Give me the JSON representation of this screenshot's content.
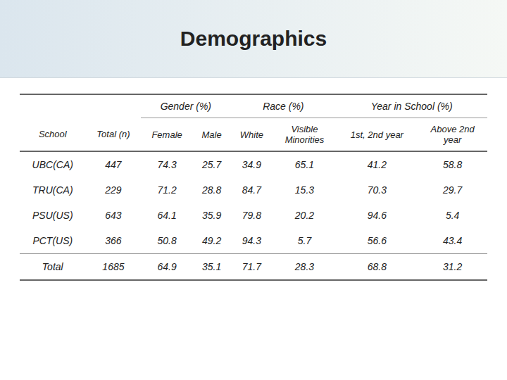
{
  "chart_data": {
    "type": "table",
    "title": "Demographics",
    "column_groups": [
      "Gender (%)",
      "Race (%)",
      "Year in School (%)"
    ],
    "columns": [
      "School",
      "Total (n)",
      "Female",
      "Male",
      "White",
      "Visible\nMinorities",
      "1st, 2nd year",
      "Above 2nd\nyear"
    ],
    "categories": [
      "UBC(CA)",
      "TRU(CA)",
      "PSU(US)",
      "PCT(US)",
      "Total"
    ],
    "rows": [
      [
        447,
        74.3,
        25.7,
        34.9,
        65.1,
        41.2,
        58.8
      ],
      [
        229,
        71.2,
        28.8,
        84.7,
        15.3,
        70.3,
        29.7
      ],
      [
        643,
        64.1,
        35.9,
        79.8,
        20.2,
        94.6,
        5.4
      ],
      [
        366,
        50.8,
        49.2,
        94.3,
        5.7,
        56.6,
        43.4
      ],
      [
        1685,
        64.9,
        35.1,
        71.7,
        28.3,
        68.8,
        31.2
      ]
    ]
  }
}
